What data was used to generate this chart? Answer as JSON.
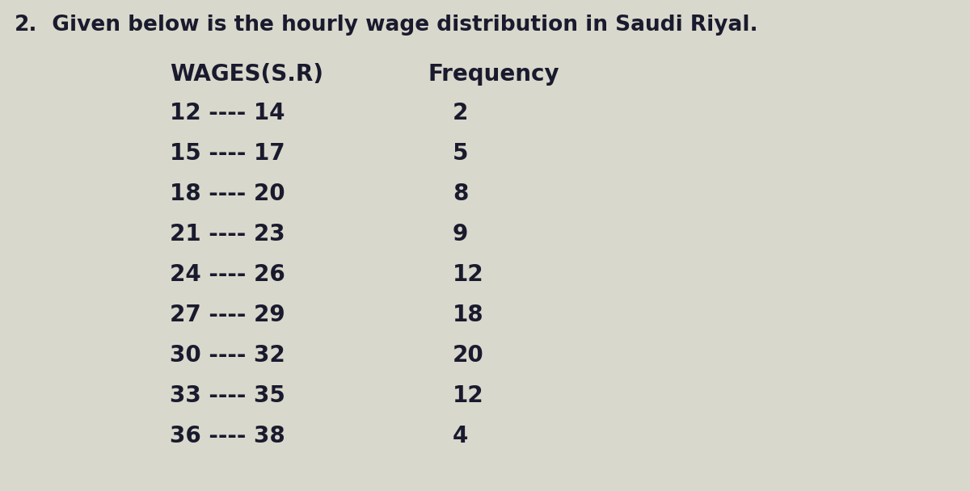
{
  "title_num": "2.",
  "title_text": "  Given below is the hourly wage distribution in Saudi Riyal.",
  "title_fontsize": 19,
  "title_color": "#1a1a2e",
  "col1_header": "WAGES(S.R)",
  "col2_header": "Frequency",
  "wages": [
    "12 ---- 14",
    "15 ---- 17",
    "18 ---- 20",
    "21 ---- 23",
    "24 ---- 26",
    "27 ---- 29",
    "30 ---- 32",
    "33 ---- 35",
    "36 ---- 38"
  ],
  "frequencies": [
    "2",
    "5",
    "8",
    "9",
    "12",
    "18",
    "20",
    "12",
    "4"
  ],
  "header_fontsize": 20,
  "data_fontsize": 20,
  "data_color": "#1a1a2e",
  "background_color": "#c8c8bc",
  "content_bg": "#d8d8cc",
  "fig_width": 12.0,
  "fig_height": 6.08
}
